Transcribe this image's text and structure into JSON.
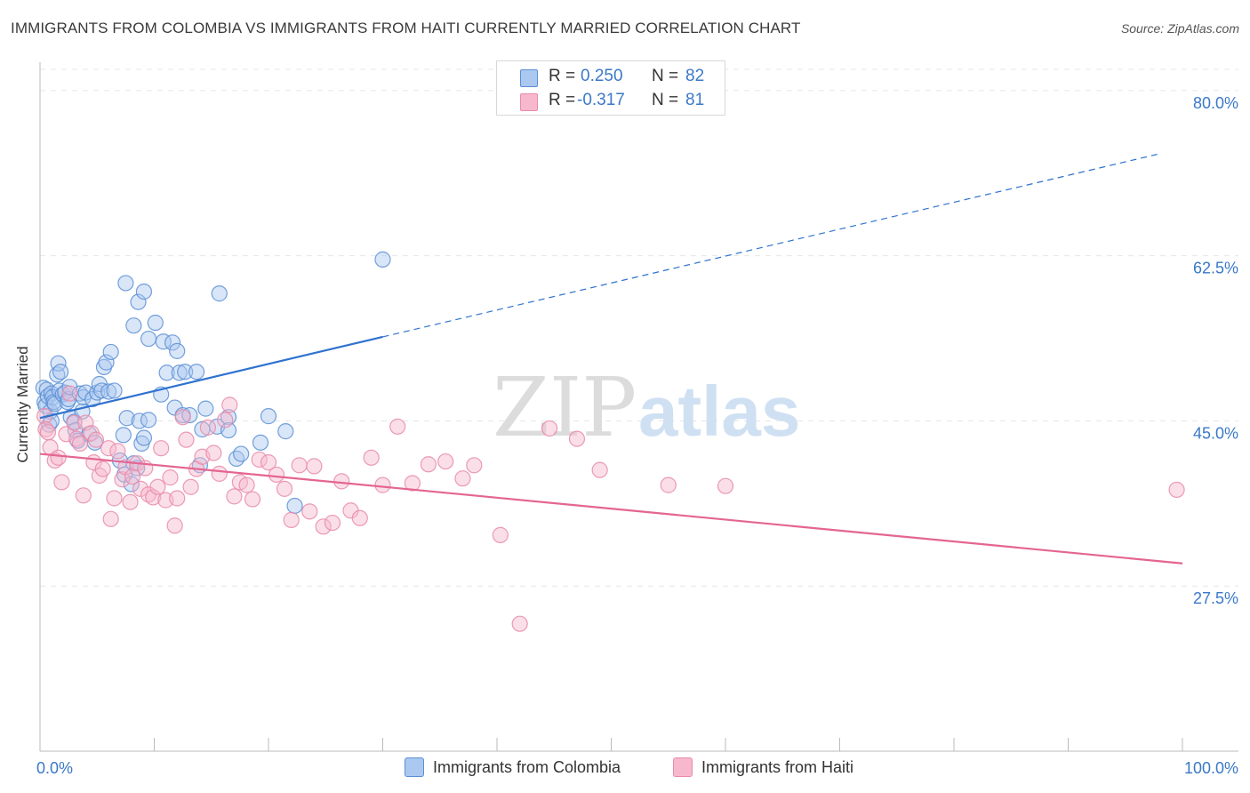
{
  "title": "IMMIGRANTS FROM COLOMBIA VS IMMIGRANTS FROM HAITI CURRENTLY MARRIED CORRELATION CHART",
  "source": "Source: ZipAtlas.com",
  "watermark": {
    "zip": "ZIP",
    "atlas": "atlas"
  },
  "legend": {
    "rows": [
      {
        "r_label": "R =",
        "r_value": "0.250",
        "n_label": "N =",
        "n_value": "82"
      },
      {
        "r_label": "R =",
        "r_value": "-0.317",
        "n_label": "N =",
        "n_value": "81"
      }
    ]
  },
  "colors": {
    "colombia_fill": "#aac8f0",
    "colombia_stroke": "#5b8fd6",
    "colombia_line": "#2f72d0",
    "haiti_fill": "#f7b8cd",
    "haiti_stroke": "#e88aa9",
    "haiti_line": "#e46592",
    "tick_text": "#3b78c8",
    "grid": "#e6e6e6"
  },
  "chart_data": {
    "type": "scatter",
    "title": "IMMIGRANTS FROM COLOMBIA VS IMMIGRANTS FROM HAITI CURRENTLY MARRIED CORRELATION CHART",
    "xlabel": "",
    "ylabel": "Currently Married",
    "xlim": [
      0,
      100
    ],
    "ylim": [
      10,
      83
    ],
    "x_tick_labels": [
      "0.0%",
      "100.0%"
    ],
    "y_ticks": [
      27.5,
      45.0,
      62.5,
      80.0
    ],
    "y_tick_labels": [
      "27.5%",
      "45.0%",
      "62.5%",
      "80.0%"
    ],
    "grid": true,
    "legend_position": "top-center",
    "series": [
      {
        "name": "Immigrants from Colombia",
        "trend": {
          "x0": 0,
          "y0": 45.3,
          "x1": 30,
          "y1": 53.9,
          "x_dash_end": 98,
          "y_dash_end": 73.3
        },
        "points": [
          [
            0.3,
            48.5
          ],
          [
            0.4,
            47.0
          ],
          [
            0.5,
            46.6
          ],
          [
            0.6,
            48.3
          ],
          [
            0.7,
            47.6
          ],
          [
            0.8,
            44.6
          ],
          [
            0.9,
            46.0
          ],
          [
            1.0,
            47.9
          ],
          [
            1.0,
            45.0
          ],
          [
            1.1,
            47.5
          ],
          [
            1.2,
            47.0
          ],
          [
            1.3,
            46.8
          ],
          [
            1.5,
            49.9
          ],
          [
            1.6,
            51.1
          ],
          [
            1.7,
            48.2
          ],
          [
            1.8,
            50.2
          ],
          [
            2.0,
            47.8
          ],
          [
            2.2,
            48.0
          ],
          [
            2.4,
            47.0
          ],
          [
            2.5,
            47.3
          ],
          [
            2.6,
            48.6
          ],
          [
            2.7,
            45.4
          ],
          [
            3.0,
            44.9
          ],
          [
            3.1,
            44.0
          ],
          [
            3.3,
            42.9
          ],
          [
            3.5,
            47.9
          ],
          [
            3.7,
            46.0
          ],
          [
            3.8,
            47.5
          ],
          [
            4.0,
            48.0
          ],
          [
            4.3,
            43.6
          ],
          [
            4.6,
            47.3
          ],
          [
            4.8,
            42.7
          ],
          [
            5.0,
            48.0
          ],
          [
            5.2,
            48.9
          ],
          [
            5.4,
            48.2
          ],
          [
            5.6,
            50.7
          ],
          [
            5.8,
            51.2
          ],
          [
            6.0,
            48.1
          ],
          [
            6.2,
            52.3
          ],
          [
            6.5,
            48.2
          ],
          [
            7.0,
            40.8
          ],
          [
            7.3,
            43.5
          ],
          [
            7.4,
            39.3
          ],
          [
            7.6,
            45.3
          ],
          [
            8.0,
            38.3
          ],
          [
            8.2,
            40.5
          ],
          [
            8.5,
            40.0
          ],
          [
            8.7,
            45.0
          ],
          [
            8.9,
            42.6
          ],
          [
            9.1,
            43.2
          ],
          [
            9.5,
            45.1
          ],
          [
            7.5,
            59.6
          ],
          [
            8.6,
            57.6
          ],
          [
            9.1,
            58.7
          ],
          [
            8.2,
            55.1
          ],
          [
            9.5,
            53.7
          ],
          [
            10.1,
            55.4
          ],
          [
            10.8,
            53.4
          ],
          [
            11.6,
            53.3
          ],
          [
            12.0,
            52.4
          ],
          [
            10.6,
            47.8
          ],
          [
            11.1,
            50.1
          ],
          [
            12.2,
            50.1
          ],
          [
            12.7,
            50.2
          ],
          [
            11.8,
            46.4
          ],
          [
            12.5,
            45.6
          ],
          [
            13.1,
            45.6
          ],
          [
            13.7,
            50.2
          ],
          [
            14.2,
            44.1
          ],
          [
            14.5,
            46.3
          ],
          [
            15.5,
            44.4
          ],
          [
            16.5,
            45.4
          ],
          [
            16.5,
            44.0
          ],
          [
            14.0,
            40.3
          ],
          [
            15.7,
            58.5
          ],
          [
            17.2,
            41.0
          ],
          [
            17.6,
            41.5
          ],
          [
            19.3,
            42.7
          ],
          [
            20.0,
            45.5
          ],
          [
            21.5,
            43.9
          ],
          [
            22.3,
            36.0
          ],
          [
            30.0,
            62.1
          ]
        ]
      },
      {
        "name": "Immigrants from Haiti",
        "trend": {
          "x0": 0,
          "y0": 41.5,
          "x1": 100,
          "y1": 29.9
        },
        "points": [
          [
            0.4,
            45.5
          ],
          [
            0.5,
            44.1
          ],
          [
            0.7,
            43.8
          ],
          [
            0.9,
            42.2
          ],
          [
            1.3,
            40.8
          ],
          [
            1.6,
            41.1
          ],
          [
            1.9,
            38.5
          ],
          [
            2.3,
            43.6
          ],
          [
            2.6,
            47.9
          ],
          [
            3.0,
            44.8
          ],
          [
            3.2,
            43.1
          ],
          [
            3.5,
            42.6
          ],
          [
            3.8,
            37.1
          ],
          [
            4.0,
            44.8
          ],
          [
            4.5,
            43.7
          ],
          [
            4.7,
            40.6
          ],
          [
            4.9,
            43.0
          ],
          [
            5.2,
            39.2
          ],
          [
            5.5,
            39.9
          ],
          [
            6.0,
            42.1
          ],
          [
            6.2,
            34.6
          ],
          [
            6.5,
            36.8
          ],
          [
            6.8,
            41.8
          ],
          [
            7.2,
            38.8
          ],
          [
            7.5,
            40.1
          ],
          [
            7.9,
            36.4
          ],
          [
            8.1,
            39.1
          ],
          [
            8.5,
            40.5
          ],
          [
            8.8,
            37.8
          ],
          [
            9.2,
            40.0
          ],
          [
            9.5,
            37.2
          ],
          [
            9.9,
            36.9
          ],
          [
            10.3,
            38.0
          ],
          [
            10.6,
            42.1
          ],
          [
            11.0,
            36.6
          ],
          [
            11.4,
            39.0
          ],
          [
            11.8,
            33.9
          ],
          [
            12.0,
            36.8
          ],
          [
            12.5,
            45.4
          ],
          [
            12.8,
            43.0
          ],
          [
            13.2,
            38.0
          ],
          [
            13.7,
            39.9
          ],
          [
            14.2,
            41.2
          ],
          [
            14.7,
            44.3
          ],
          [
            15.2,
            41.6
          ],
          [
            15.7,
            39.4
          ],
          [
            16.2,
            45.1
          ],
          [
            16.6,
            46.7
          ],
          [
            17.0,
            37.0
          ],
          [
            17.5,
            38.5
          ],
          [
            18.1,
            38.2
          ],
          [
            18.6,
            36.7
          ],
          [
            19.2,
            40.9
          ],
          [
            20.0,
            40.6
          ],
          [
            20.7,
            39.3
          ],
          [
            21.4,
            37.8
          ],
          [
            22.0,
            34.5
          ],
          [
            22.7,
            40.3
          ],
          [
            23.6,
            35.4
          ],
          [
            24.0,
            40.2
          ],
          [
            24.8,
            33.8
          ],
          [
            25.6,
            34.2
          ],
          [
            26.4,
            38.6
          ],
          [
            27.2,
            35.5
          ],
          [
            28.0,
            34.7
          ],
          [
            29.0,
            41.1
          ],
          [
            30.0,
            38.2
          ],
          [
            31.3,
            44.4
          ],
          [
            32.6,
            38.4
          ],
          [
            34.0,
            40.4
          ],
          [
            35.5,
            40.7
          ],
          [
            37.0,
            38.9
          ],
          [
            38.0,
            40.3
          ],
          [
            40.3,
            32.9
          ],
          [
            42.0,
            23.5
          ],
          [
            44.6,
            44.2
          ],
          [
            47.0,
            43.1
          ],
          [
            49.0,
            39.8
          ],
          [
            55.0,
            38.2
          ],
          [
            60.0,
            38.1
          ],
          [
            99.5,
            37.7
          ]
        ]
      }
    ]
  },
  "bottom_legend": [
    "Immigrants from Colombia",
    "Immigrants from Haiti"
  ]
}
